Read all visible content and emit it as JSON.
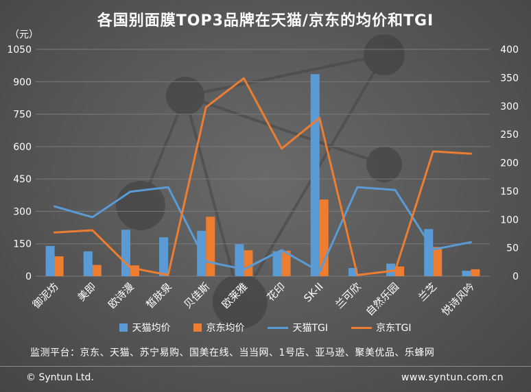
{
  "title": "各国别面膜TOP3品牌在天猫/京东的均价和TGI",
  "unit_label": "（元）",
  "platforms_note": "监测平台：京东、天猫、苏宁易购、国美在线、当当网、1号店、亚马逊、聚美优品、乐蜂网",
  "footer": {
    "copyright": "© Syntun Ltd.",
    "website": "www.syntun.com.cn"
  },
  "chart_data": {
    "type": "bar",
    "categories": [
      "御泥坊",
      "美即",
      "欧诗漫",
      "皙肤泉",
      "贝佳斯",
      "欧莱雅",
      "花印",
      "SK-II",
      "兰可欣",
      "自然乐园",
      "兰芝",
      "悦诗风吟"
    ],
    "y_left": {
      "min": 0,
      "max": 1050,
      "ticks": [
        0,
        150,
        300,
        450,
        600,
        750,
        900,
        1050
      ]
    },
    "y_right": {
      "min": 0,
      "max": 400,
      "ticks": [
        0,
        50,
        100,
        150,
        200,
        250,
        300,
        350,
        400
      ]
    },
    "series": [
      {
        "name": "天猫均价",
        "kind": "bar",
        "axis": "left",
        "color": "#5b9bd5",
        "values": [
          140,
          115,
          215,
          180,
          210,
          148,
          115,
          935,
          38,
          58,
          218,
          25
        ]
      },
      {
        "name": "京东均价",
        "kind": "bar",
        "axis": "left",
        "color": "#ed7d31",
        "values": [
          92,
          52,
          50,
          0,
          275,
          120,
          118,
          355,
          0,
          45,
          135,
          32
        ]
      },
      {
        "name": "天猫TGI",
        "kind": "line",
        "axis": "right",
        "color": "#5b9bd5",
        "values": [
          123,
          104,
          149,
          157,
          26,
          12,
          46,
          8,
          157,
          152,
          47,
          60
        ]
      },
      {
        "name": "京东TGI",
        "kind": "line",
        "axis": "right",
        "color": "#ed7d31",
        "values": [
          77,
          81,
          15,
          2,
          298,
          349,
          225,
          279,
          2,
          10,
          220,
          216
        ]
      }
    ],
    "grid": true,
    "legend_position": "bottom"
  }
}
